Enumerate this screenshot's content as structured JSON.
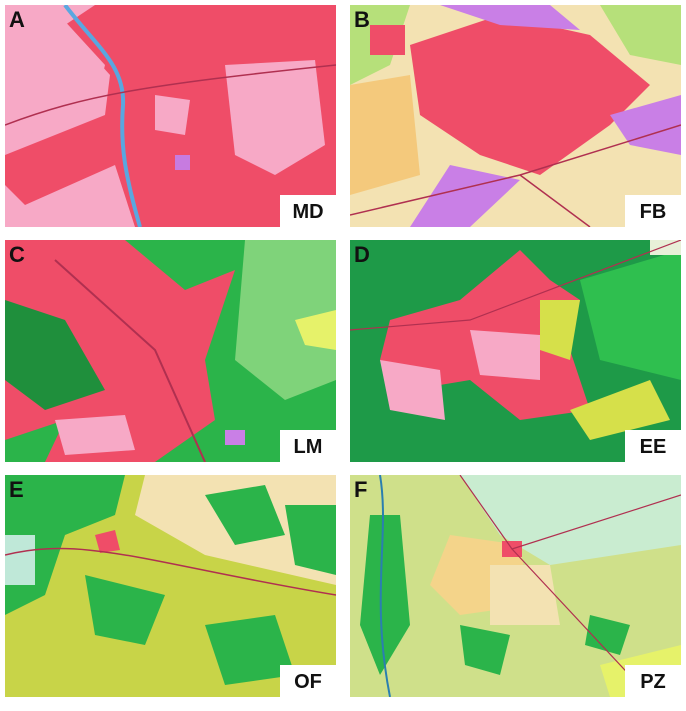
{
  "panels": [
    {
      "letter": "A",
      "code": "MD"
    },
    {
      "letter": "B",
      "code": "FB"
    },
    {
      "letter": "C",
      "code": "LM"
    },
    {
      "letter": "D",
      "code": "EE"
    },
    {
      "letter": "E",
      "code": "OF"
    },
    {
      "letter": "F",
      "code": "PZ"
    }
  ]
}
